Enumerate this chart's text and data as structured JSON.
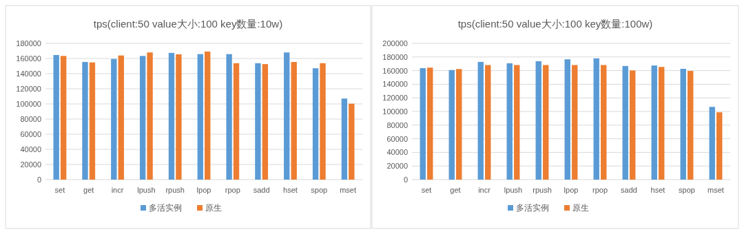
{
  "chart_data": [
    {
      "type": "bar",
      "title": "tps(client:50 value大小:100 key数量:10w)",
      "categories": [
        "set",
        "get",
        "incr",
        "lpush",
        "rpush",
        "lpop",
        "rpop",
        "sadd",
        "hset",
        "spop",
        "mset"
      ],
      "series": [
        {
          "name": "多活实例",
          "color": "#5b9bd5",
          "values": [
            164600,
            155400,
            159400,
            163400,
            167400,
            165800,
            165800,
            153800,
            168000,
            147100,
            107100
          ]
        },
        {
          "name": "原生",
          "color": "#ed7d31",
          "values": [
            163400,
            154800,
            164000,
            168000,
            165500,
            169200,
            153800,
            152600,
            155400,
            153800,
            100300
          ]
        }
      ],
      "ylim": [
        0,
        180000
      ],
      "yticks": [
        0,
        20000,
        40000,
        60000,
        80000,
        100000,
        120000,
        140000,
        160000,
        180000
      ],
      "grid": "y",
      "legend": "bottom"
    },
    {
      "type": "bar",
      "title": "tps(client:50 value大小:100 key数量:100w)",
      "categories": [
        "set",
        "get",
        "incr",
        "lpush",
        "rpush",
        "lpop",
        "rpop",
        "sadd",
        "hset",
        "spop",
        "mset"
      ],
      "series": [
        {
          "name": "多活实例",
          "color": "#5b9bd5",
          "values": [
            163700,
            160900,
            172800,
            170700,
            173800,
            176600,
            178000,
            166800,
            167500,
            162600,
            106800
          ]
        },
        {
          "name": "原生",
          "color": "#ed7d31",
          "values": [
            164400,
            162300,
            168200,
            168200,
            168200,
            168200,
            168200,
            160200,
            165400,
            159500,
            98800
          ]
        }
      ],
      "ylim": [
        0,
        200000
      ],
      "yticks": [
        0,
        20000,
        40000,
        60000,
        80000,
        100000,
        120000,
        140000,
        160000,
        180000,
        200000
      ],
      "grid": "y",
      "legend": "bottom"
    }
  ]
}
